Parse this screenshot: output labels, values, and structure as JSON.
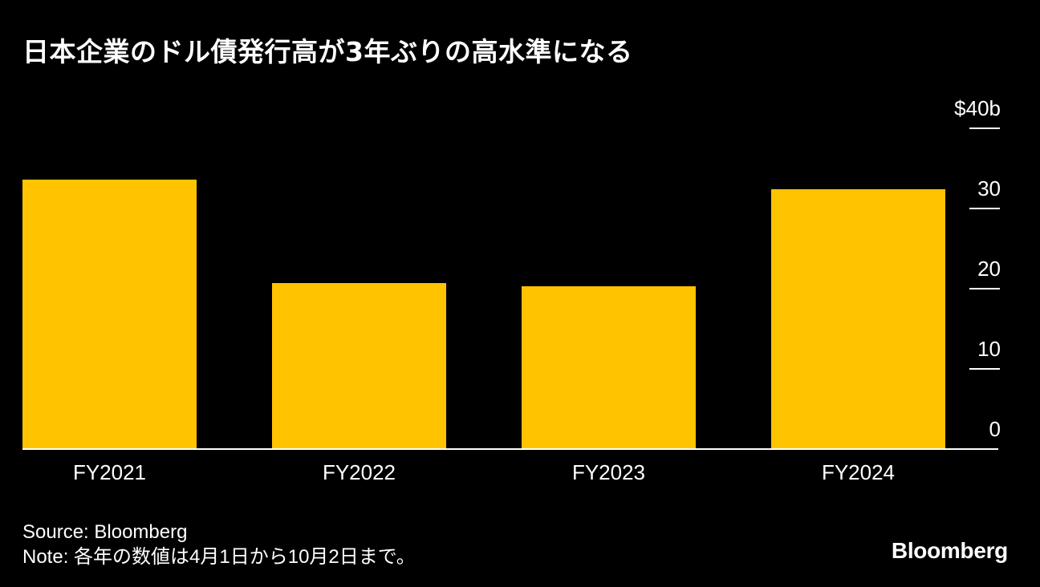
{
  "chart_data": {
    "type": "bar",
    "title": "日本企業のドル債発行高が3年ぶりの高水準になる",
    "categories": [
      "FY2021",
      "FY2022",
      "FY2023",
      "FY2024"
    ],
    "values": [
      33.6,
      20.7,
      20.3,
      32.4
    ],
    "ylim": [
      0,
      40
    ],
    "yticks": [
      0,
      10,
      20,
      30,
      40
    ],
    "ytick_labels": [
      "0",
      "10",
      "20",
      "30",
      "$40b"
    ],
    "y_axis_side": "right",
    "grid": false,
    "bar_color": "#ffc300",
    "background_color": "#000000"
  },
  "source": "Source: Bloomberg",
  "note": "Note: 各年の数値は4月1日から10月2日まで。",
  "brand": "Bloomberg"
}
